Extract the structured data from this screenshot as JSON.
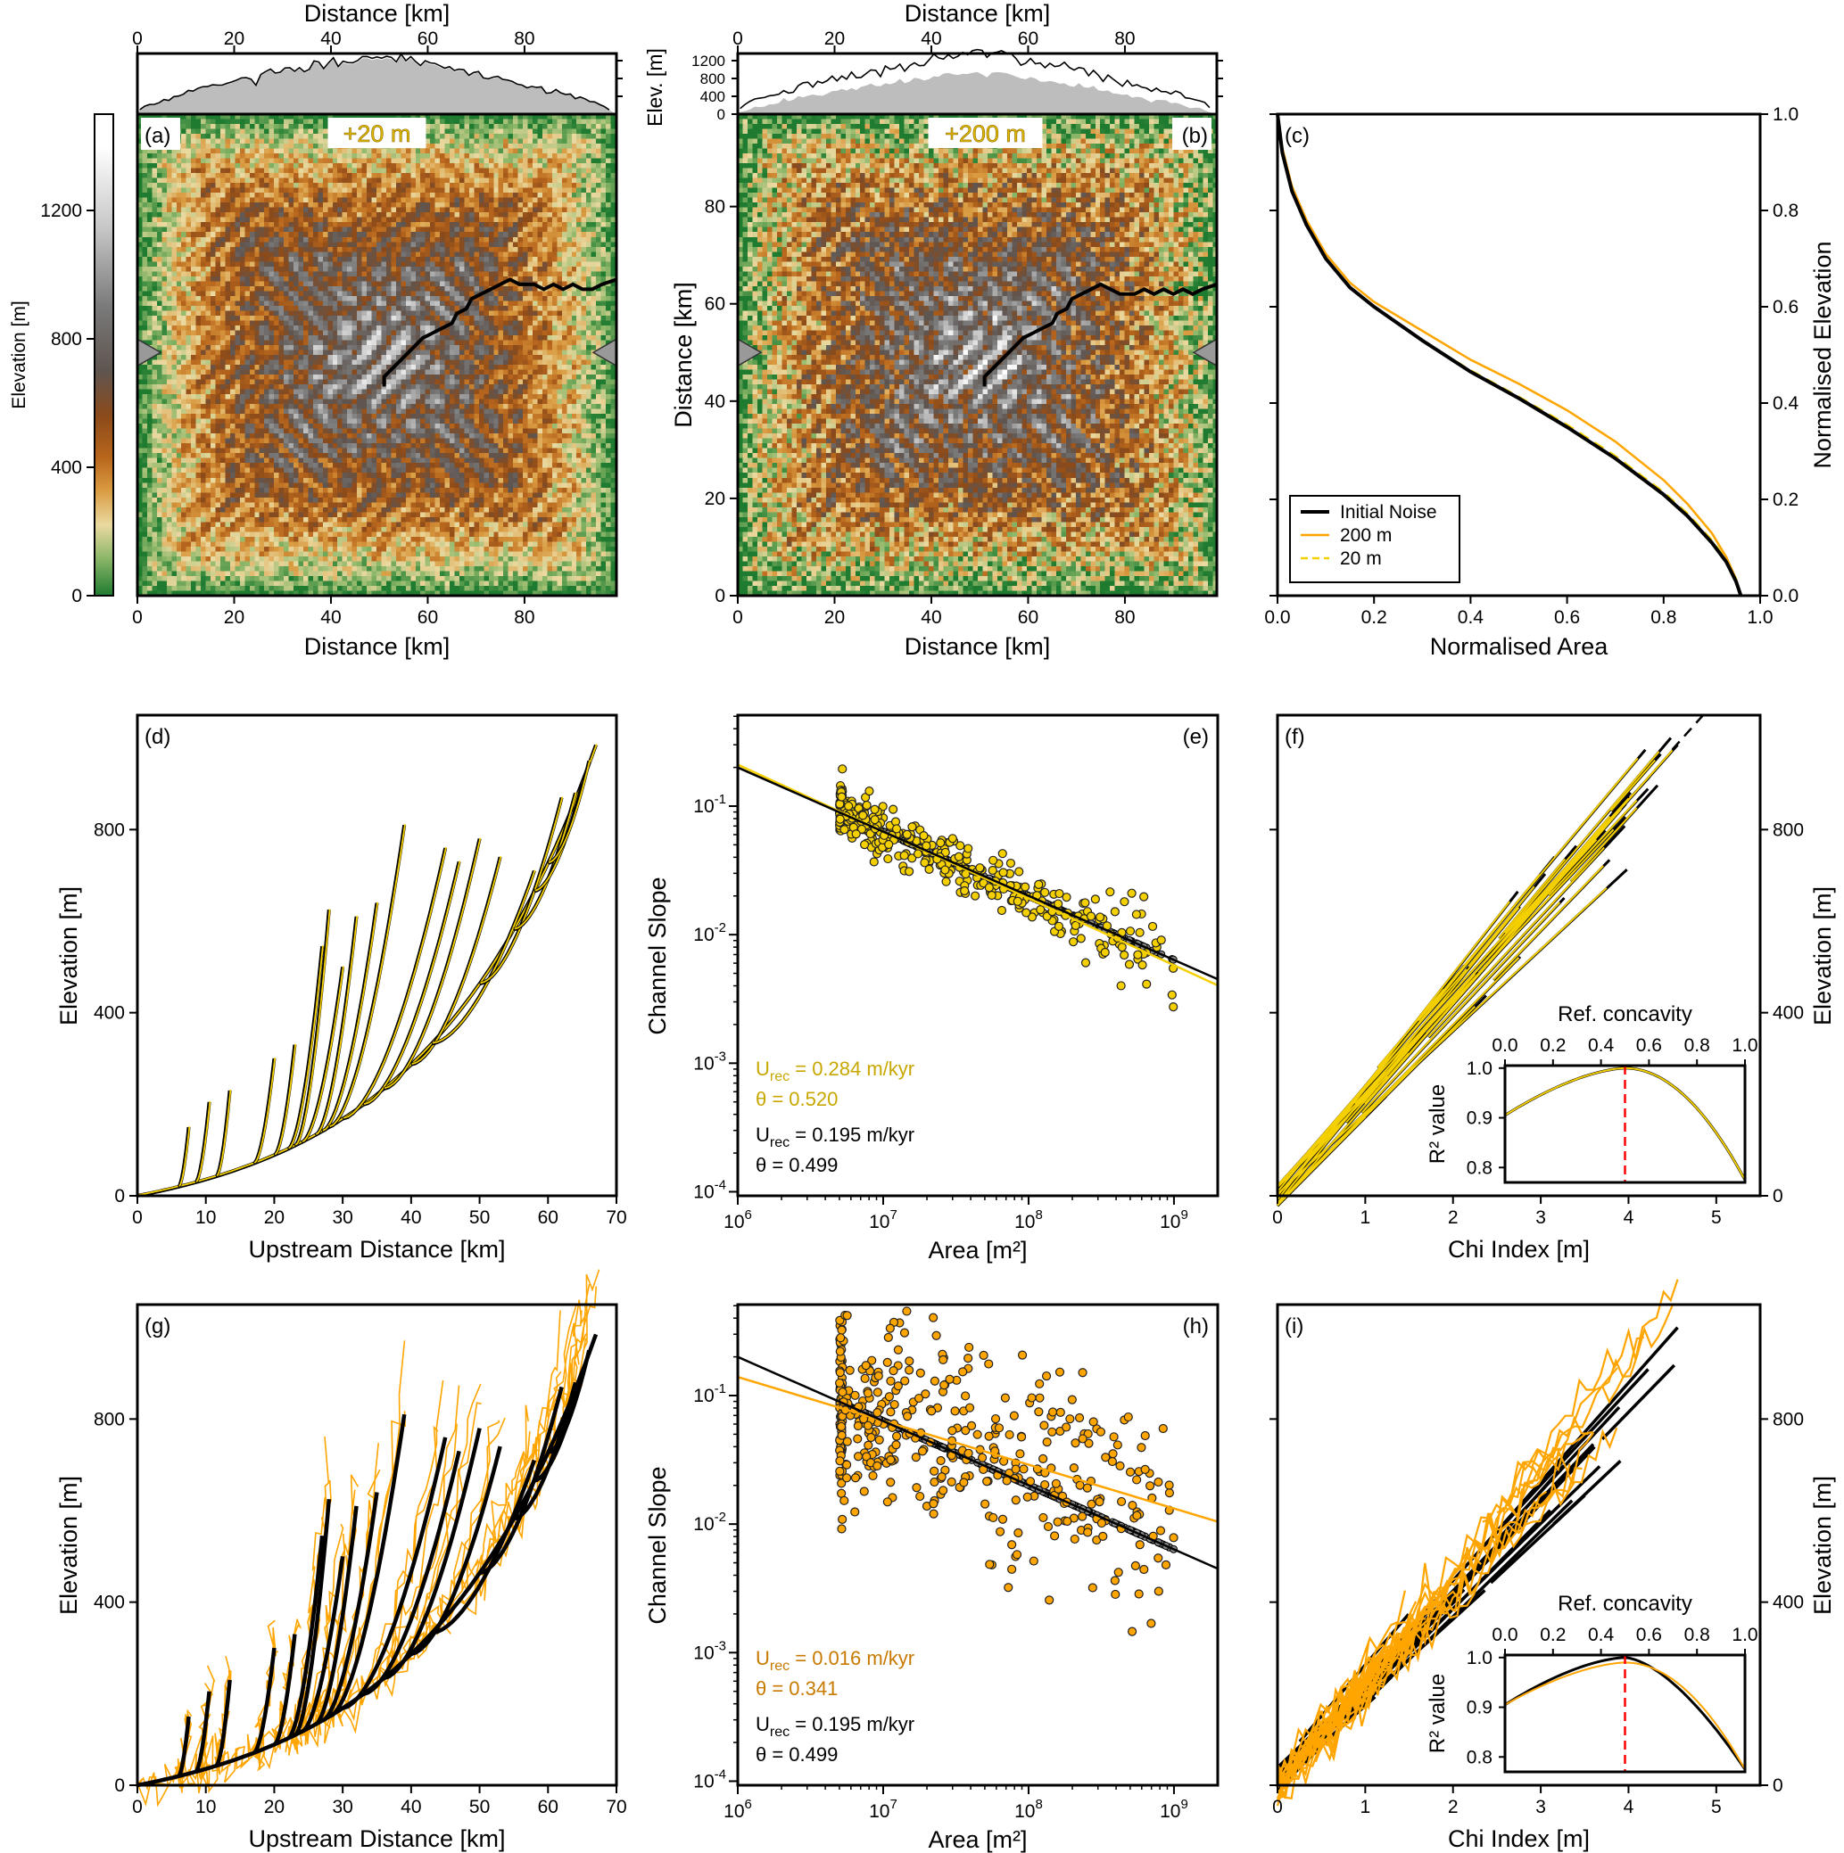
{
  "colorbar": {
    "label": "Elevation [m]",
    "range": [
      0,
      1500
    ],
    "ticks": [
      "0",
      "400",
      "800",
      "1200"
    ],
    "colormap": [
      [
        0,
        "#1e7b30"
      ],
      [
        120,
        "#8fb86a"
      ],
      [
        220,
        "#ead9a0"
      ],
      [
        330,
        "#d99a40"
      ],
      [
        430,
        "#b8661c"
      ],
      [
        560,
        "#8b4a1a"
      ],
      [
        700,
        "#5f5550"
      ],
      [
        900,
        "#7a7a7a"
      ],
      [
        1150,
        "#c8c8c8"
      ],
      [
        1400,
        "#ffffff"
      ]
    ]
  },
  "chart_data": [
    {
      "panel": "(a)",
      "type": "heatmap",
      "annotation": "+20 m",
      "annotation_color": "#e0b800",
      "xlabel": "Distance [km]",
      "top_xlabel": "Distance [km]",
      "xlim": [
        0,
        99
      ],
      "ylim": [
        0,
        99
      ],
      "xticks": [
        "0",
        "20",
        "40",
        "60",
        "80"
      ],
      "profile": {
        "ylim": [
          0,
          1360
        ],
        "fill_color": "#bdbdbd"
      },
      "river_path_km": [
        [
          51,
          43
        ],
        [
          51,
          45
        ],
        [
          54,
          48
        ],
        [
          57,
          51
        ],
        [
          59,
          53
        ],
        [
          61,
          54
        ],
        [
          63,
          55
        ],
        [
          65,
          56
        ],
        [
          66,
          58
        ],
        [
          68,
          59
        ],
        [
          69,
          61
        ],
        [
          71,
          62
        ],
        [
          73,
          63
        ],
        [
          75,
          64
        ],
        [
          77,
          65
        ],
        [
          79,
          64
        ],
        [
          82,
          64
        ],
        [
          84,
          63
        ],
        [
          86,
          64
        ],
        [
          88,
          63
        ],
        [
          90,
          64
        ],
        [
          92,
          63
        ],
        [
          94,
          63
        ],
        [
          96,
          64
        ],
        [
          99,
          65
        ]
      ],
      "outlet_marker_km": 50
    },
    {
      "panel": "(b)",
      "type": "heatmap",
      "annotation": "+200 m",
      "annotation_color": "#e0b800",
      "xlabel": "Distance [km]",
      "top_xlabel": "Distance [km]",
      "ylabel": "Distance [km]",
      "xlim": [
        0,
        99
      ],
      "ylim": [
        0,
        99
      ],
      "xticks": [
        "0",
        "20",
        "40",
        "60",
        "80"
      ],
      "yticks": [
        "0",
        "20",
        "40",
        "60",
        "80"
      ],
      "profile": {
        "ylabel": "Elev. [m]",
        "ylim": [
          0,
          1360
        ],
        "yticks": [
          "0",
          "400",
          "800",
          "1200"
        ],
        "fill_color": "#bdbdbd"
      },
      "river_path_km": [
        [
          51,
          43
        ],
        [
          51,
          45
        ],
        [
          54,
          48
        ],
        [
          57,
          51
        ],
        [
          59,
          53
        ],
        [
          61,
          54
        ],
        [
          63,
          55
        ],
        [
          65,
          56
        ],
        [
          66,
          58
        ],
        [
          68,
          59
        ],
        [
          69,
          61
        ],
        [
          71,
          62
        ],
        [
          73,
          63
        ],
        [
          75,
          64
        ],
        [
          77,
          63
        ],
        [
          79,
          62
        ],
        [
          82,
          62
        ],
        [
          84,
          63
        ],
        [
          86,
          62
        ],
        [
          88,
          63
        ],
        [
          90,
          62
        ],
        [
          92,
          63
        ],
        [
          94,
          62
        ],
        [
          96,
          63
        ],
        [
          99,
          64
        ]
      ],
      "outlet_marker_km": 50
    },
    {
      "panel": "(c)",
      "type": "line",
      "xlabel": "Normalised Area",
      "ylabel": "Normalised Elevation",
      "xlim": [
        0,
        1
      ],
      "ylim": [
        0,
        1
      ],
      "xticks": [
        "0.0",
        "0.2",
        "0.4",
        "0.6",
        "0.8",
        "1.0"
      ],
      "yticks": [
        "0.0",
        "0.2",
        "0.4",
        "0.6",
        "0.8",
        "1.0"
      ],
      "legend": "bottom-left",
      "series": [
        {
          "name": "Initial Noise",
          "color": "#000000",
          "style": "solid",
          "x": [
            0,
            0.01,
            0.03,
            0.06,
            0.1,
            0.15,
            0.2,
            0.3,
            0.4,
            0.5,
            0.6,
            0.7,
            0.8,
            0.85,
            0.9,
            0.93,
            0.95,
            0.96
          ],
          "y": [
            1,
            0.92,
            0.84,
            0.77,
            0.7,
            0.64,
            0.6,
            0.53,
            0.465,
            0.41,
            0.35,
            0.285,
            0.21,
            0.165,
            0.11,
            0.07,
            0.03,
            0
          ]
        },
        {
          "name": "200 m",
          "color": "#ffa500",
          "style": "solid",
          "x": [
            0,
            0.01,
            0.03,
            0.06,
            0.1,
            0.15,
            0.2,
            0.3,
            0.4,
            0.5,
            0.6,
            0.7,
            0.8,
            0.85,
            0.9,
            0.93,
            0.95,
            0.96
          ],
          "y": [
            1,
            0.93,
            0.85,
            0.78,
            0.71,
            0.65,
            0.61,
            0.55,
            0.49,
            0.44,
            0.385,
            0.32,
            0.24,
            0.19,
            0.13,
            0.08,
            0.035,
            0
          ]
        },
        {
          "name": "20 m",
          "color": "#f5d000",
          "style": "dashed",
          "x": [
            0,
            0.01,
            0.03,
            0.06,
            0.1,
            0.15,
            0.2,
            0.3,
            0.4,
            0.5,
            0.6,
            0.7,
            0.8,
            0.85,
            0.9,
            0.93,
            0.95,
            0.96
          ],
          "y": [
            1,
            0.92,
            0.84,
            0.77,
            0.7,
            0.64,
            0.6,
            0.53,
            0.468,
            0.413,
            0.355,
            0.29,
            0.215,
            0.17,
            0.115,
            0.075,
            0.033,
            0
          ]
        }
      ]
    },
    {
      "panel": "(d)",
      "type": "line",
      "xlabel": "Upstream Distance [km]",
      "ylabel": "Elevation [m]",
      "xlim": [
        0,
        70
      ],
      "ylim": [
        0,
        1050
      ],
      "xticks": [
        "0",
        "10",
        "20",
        "30",
        "40",
        "50",
        "60",
        "70"
      ],
      "yticks": [
        "0",
        "400",
        "800"
      ],
      "trunk": {
        "end_km": 67,
        "end_elev": 985
      },
      "tributaries": [
        [
          6,
          7.5,
          150
        ],
        [
          8.5,
          10.5,
          205
        ],
        [
          11.5,
          13.5,
          230
        ],
        [
          17,
          20,
          300
        ],
        [
          20,
          23,
          330
        ],
        [
          22,
          27,
          545
        ],
        [
          23,
          28,
          625
        ],
        [
          24,
          30,
          500
        ],
        [
          26,
          32,
          610
        ],
        [
          27,
          35,
          640
        ],
        [
          28,
          39,
          810
        ],
        [
          30,
          45,
          760
        ],
        [
          33,
          47,
          730
        ],
        [
          36,
          50,
          780
        ],
        [
          40,
          53,
          740
        ],
        [
          43,
          58,
          710
        ],
        [
          50,
          62,
          870
        ],
        [
          55,
          64,
          880
        ],
        [
          58,
          65,
          900
        ],
        [
          60,
          66,
          950
        ]
      ],
      "series": [
        {
          "color": "#000000"
        },
        {
          "color": "#f5d000"
        }
      ]
    },
    {
      "panel": "(e)",
      "type": "scatter",
      "xlabel": "Area [m²]",
      "ylabel": "Channel Slope",
      "xlim": [
        1000000,
        2000000000
      ],
      "ylim": [
        9.3e-05,
        0.51
      ],
      "xtick_exponents": [
        "6",
        "7",
        "8",
        "9"
      ],
      "ytick_exponents": [
        "-4",
        "-3",
        "-2",
        "-1"
      ],
      "points_color": "#f5d000",
      "noise_log10": 0.1,
      "fits": [
        {
          "color": "#c8a800",
          "ks": 277,
          "theta": 0.52,
          "U_symbol": "U",
          "U_sub": "rec",
          "U_text": " = 0.284 m/kyr",
          "theta_text": "θ = 0.520"
        },
        {
          "color": "#000000",
          "ks": 197,
          "theta": 0.499,
          "U_symbol": "U",
          "U_sub": "rec",
          "U_text": " = 0.195 m/kyr",
          "theta_text": "θ = 0.499"
        }
      ]
    },
    {
      "panel": "(f)",
      "type": "line",
      "xlabel": "Chi Index [m]",
      "ylabel": "Elevation [m]",
      "xlim": [
        0,
        5.5
      ],
      "ylim": [
        0,
        1050
      ],
      "xticks": [
        "0",
        "1",
        "2",
        "3",
        "4",
        "5"
      ],
      "yticks": [
        "0",
        "400",
        "800"
      ],
      "series": [
        {
          "color": "#000000"
        },
        {
          "color": "#f5d000"
        }
      ],
      "inset": {
        "xlabel": "Ref. concavity",
        "ylabel": "R² value",
        "xlim": [
          0,
          1
        ],
        "ylim": [
          0.77,
          1.005
        ],
        "xticks": [
          "0.0",
          "0.2",
          "0.4",
          "0.6",
          "0.8",
          "1.0"
        ],
        "yticks": [
          "0.8",
          "0.9",
          "1.0"
        ],
        "best_concavity": 0.5,
        "marker_color": "#ff0000",
        "series": [
          {
            "color": "#000000",
            "start": 0.905,
            "peak": 1.0,
            "end": 0.775
          },
          {
            "color": "#f5d000",
            "start": 0.905,
            "peak": 1.0,
            "end": 0.775
          }
        ]
      }
    },
    {
      "panel": "(g)",
      "type": "line",
      "xlabel": "Upstream Distance [km]",
      "ylabel": "Elevation [m]",
      "xlim": [
        0,
        70
      ],
      "ylim": [
        0,
        1050
      ],
      "xticks": [
        "0",
        "10",
        "20",
        "30",
        "40",
        "50",
        "60",
        "70"
      ],
      "yticks": [
        "0",
        "400",
        "800"
      ],
      "trunk": {
        "end_km": 67,
        "end_elev": 985
      },
      "tributaries": [
        [
          6,
          7.5,
          150
        ],
        [
          8.5,
          10.5,
          205
        ],
        [
          11.5,
          13.5,
          230
        ],
        [
          17,
          20,
          300
        ],
        [
          20,
          23,
          330
        ],
        [
          22,
          27,
          545
        ],
        [
          23,
          28,
          625
        ],
        [
          24,
          30,
          500
        ],
        [
          26,
          32,
          610
        ],
        [
          27,
          35,
          640
        ],
        [
          28,
          39,
          810
        ],
        [
          30,
          45,
          760
        ],
        [
          33,
          47,
          730
        ],
        [
          36,
          50,
          780
        ],
        [
          40,
          53,
          740
        ],
        [
          43,
          58,
          710
        ],
        [
          50,
          62,
          870
        ],
        [
          55,
          64,
          880
        ],
        [
          58,
          65,
          900
        ],
        [
          60,
          66,
          950
        ]
      ],
      "series": [
        {
          "color": "#000000"
        },
        {
          "color": "#ffa500"
        }
      ]
    },
    {
      "panel": "(h)",
      "type": "scatter",
      "xlabel": "Area [m²]",
      "ylabel": "Channel Slope",
      "xlim": [
        1000000,
        2000000000
      ],
      "ylim": [
        9.3e-05,
        0.51
      ],
      "xtick_exponents": [
        "6",
        "7",
        "8",
        "9"
      ],
      "ytick_exponents": [
        "-4",
        "-3",
        "-2",
        "-1"
      ],
      "points_color": "#ffa500",
      "noise_log10": 0.38,
      "fits": [
        {
          "color": "#c87a00",
          "ks": 15.5,
          "theta": 0.341,
          "U_symbol": "U",
          "U_sub": "rec",
          "U_text": " = 0.016 m/kyr",
          "theta_text": "θ = 0.341"
        },
        {
          "color": "#000000",
          "ks": 197,
          "theta": 0.499,
          "U_symbol": "U",
          "U_sub": "rec",
          "U_text": " = 0.195 m/kyr",
          "theta_text": "θ = 0.499"
        }
      ]
    },
    {
      "panel": "(i)",
      "type": "line",
      "xlabel": "Chi Index [m]",
      "ylabel": "Elevation [m]",
      "xlim": [
        0,
        5.5
      ],
      "ylim": [
        0,
        1050
      ],
      "xticks": [
        "0",
        "1",
        "2",
        "3",
        "4",
        "5"
      ],
      "yticks": [
        "0",
        "400",
        "800"
      ],
      "series": [
        {
          "color": "#000000"
        },
        {
          "color": "#ffa500"
        }
      ],
      "inset": {
        "xlabel": "Ref. concavity",
        "ylabel": "R² value",
        "xlim": [
          0,
          1
        ],
        "ylim": [
          0.77,
          1.005
        ],
        "xticks": [
          "0.0",
          "0.2",
          "0.4",
          "0.6",
          "0.8",
          "1.0"
        ],
        "yticks": [
          "0.8",
          "0.9",
          "1.0"
        ],
        "best_concavity": 0.5,
        "marker_color": "#ff0000",
        "series": [
          {
            "color": "#000000",
            "start": 0.905,
            "peak": 1.0,
            "end": 0.775
          },
          {
            "color": "#ffa500",
            "start": 0.905,
            "peak": 0.99,
            "end": 0.775
          }
        ]
      }
    }
  ]
}
